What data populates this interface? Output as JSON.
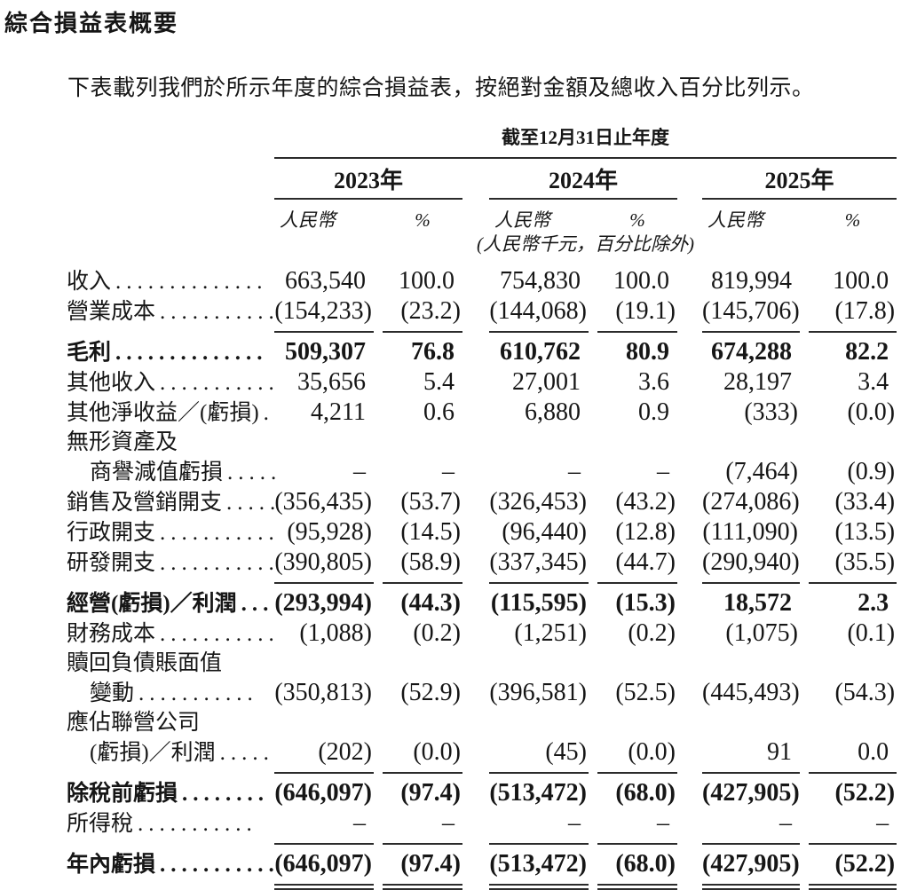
{
  "colors": {
    "background": "#ffffff",
    "text": "#161616",
    "rule": "#2b2b2b"
  },
  "page": {
    "title": "綜合損益表概要",
    "intro": "下表載列我們於所示年度的綜合損益表，按絕對金額及總收入百分比列示。"
  },
  "table": {
    "period_header": "截至12月31日止年度",
    "years": [
      "2023年",
      "2024年",
      "2025年"
    ],
    "currency_label": "人民幣",
    "percent_label": "%",
    "unit_note": "(人民幣千元，百分比除外)",
    "rows": [
      {
        "label": "收入",
        "dots": "..............",
        "indent": false,
        "bold": false,
        "rule": null,
        "values": [
          "663,540",
          "100.0",
          "754,830",
          "100.0",
          "819,994",
          "100.0"
        ]
      },
      {
        "label": "營業成本",
        "dots": "...........",
        "indent": false,
        "bold": false,
        "rule": "single",
        "values": [
          "(154,233)",
          "(23.2)",
          "(144,068)",
          "(19.1)",
          "(145,706)",
          "(17.8)"
        ]
      },
      {
        "label": "毛利",
        "dots": "..............",
        "indent": false,
        "bold": true,
        "rule": null,
        "values": [
          "509,307",
          "76.8",
          "610,762",
          "80.9",
          "674,288",
          "82.2"
        ]
      },
      {
        "label": "其他收入",
        "dots": "...........",
        "indent": false,
        "bold": false,
        "rule": null,
        "values": [
          "35,656",
          "5.4",
          "27,001",
          "3.6",
          "28,197",
          "3.4"
        ]
      },
      {
        "label": "其他淨收益／(虧損)",
        "dots": ".",
        "indent": false,
        "bold": false,
        "rule": null,
        "values": [
          "4,211",
          "0.6",
          "6,880",
          "0.9",
          "(333)",
          "(0.0)"
        ]
      },
      {
        "label": "無形資產及",
        "dots": "",
        "indent": false,
        "bold": false,
        "rule": null,
        "values": null
      },
      {
        "label": "商譽減值虧損",
        "dots": ".....",
        "indent": true,
        "bold": false,
        "rule": null,
        "values": [
          "–",
          "–",
          "–",
          "–",
          "(7,464)",
          "(0.9)"
        ]
      },
      {
        "label": "銷售及營銷開支",
        "dots": ".....",
        "indent": false,
        "bold": false,
        "rule": null,
        "values": [
          "(356,435)",
          "(53.7)",
          "(326,453)",
          "(43.2)",
          "(274,086)",
          "(33.4)"
        ]
      },
      {
        "label": "行政開支",
        "dots": "...........",
        "indent": false,
        "bold": false,
        "rule": null,
        "values": [
          "(95,928)",
          "(14.5)",
          "(96,440)",
          "(12.8)",
          "(111,090)",
          "(13.5)"
        ]
      },
      {
        "label": "研發開支",
        "dots": "...........",
        "indent": false,
        "bold": false,
        "rule": "single",
        "values": [
          "(390,805)",
          "(58.9)",
          "(337,345)",
          "(44.7)",
          "(290,940)",
          "(35.5)"
        ]
      },
      {
        "label": "經營(虧損)／利潤",
        "dots": "...",
        "indent": false,
        "bold": true,
        "rule": null,
        "values": [
          "(293,994)",
          "(44.3)",
          "(115,595)",
          "(15.3)",
          "18,572",
          "2.3"
        ]
      },
      {
        "label": "財務成本",
        "dots": "...........",
        "indent": false,
        "bold": false,
        "rule": null,
        "values": [
          "(1,088)",
          "(0.2)",
          "(1,251)",
          "(0.2)",
          "(1,075)",
          "(0.1)"
        ]
      },
      {
        "label": "贖回負債賬面值",
        "dots": "",
        "indent": false,
        "bold": false,
        "rule": null,
        "values": null
      },
      {
        "label": "變動",
        "dots": "...........",
        "indent": true,
        "bold": false,
        "rule": null,
        "values": [
          "(350,813)",
          "(52.9)",
          "(396,581)",
          "(52.5)",
          "(445,493)",
          "(54.3)"
        ]
      },
      {
        "label": "應佔聯營公司",
        "dots": "",
        "indent": false,
        "bold": false,
        "rule": null,
        "values": null
      },
      {
        "label": "(虧損)／利潤",
        "dots": ".....",
        "indent": true,
        "bold": false,
        "rule": "single",
        "values": [
          "(202)",
          "(0.0)",
          "(45)",
          "(0.0)",
          "91",
          "0.0"
        ]
      },
      {
        "label": "除稅前虧損",
        "dots": "........",
        "indent": false,
        "bold": true,
        "rule": null,
        "values": [
          "(646,097)",
          "(97.4)",
          "(513,472)",
          "(68.0)",
          "(427,905)",
          "(52.2)"
        ]
      },
      {
        "label": "所得稅",
        "dots": "...........",
        "indent": false,
        "bold": false,
        "rule": "single",
        "values": [
          "–",
          "–",
          "–",
          "–",
          "–",
          "–"
        ]
      },
      {
        "label": "年內虧損",
        "dots": "...........",
        "indent": false,
        "bold": true,
        "rule": "double",
        "values": [
          "(646,097)",
          "(97.4)",
          "(513,472)",
          "(68.0)",
          "(427,905)",
          "(52.2)"
        ]
      }
    ]
  }
}
